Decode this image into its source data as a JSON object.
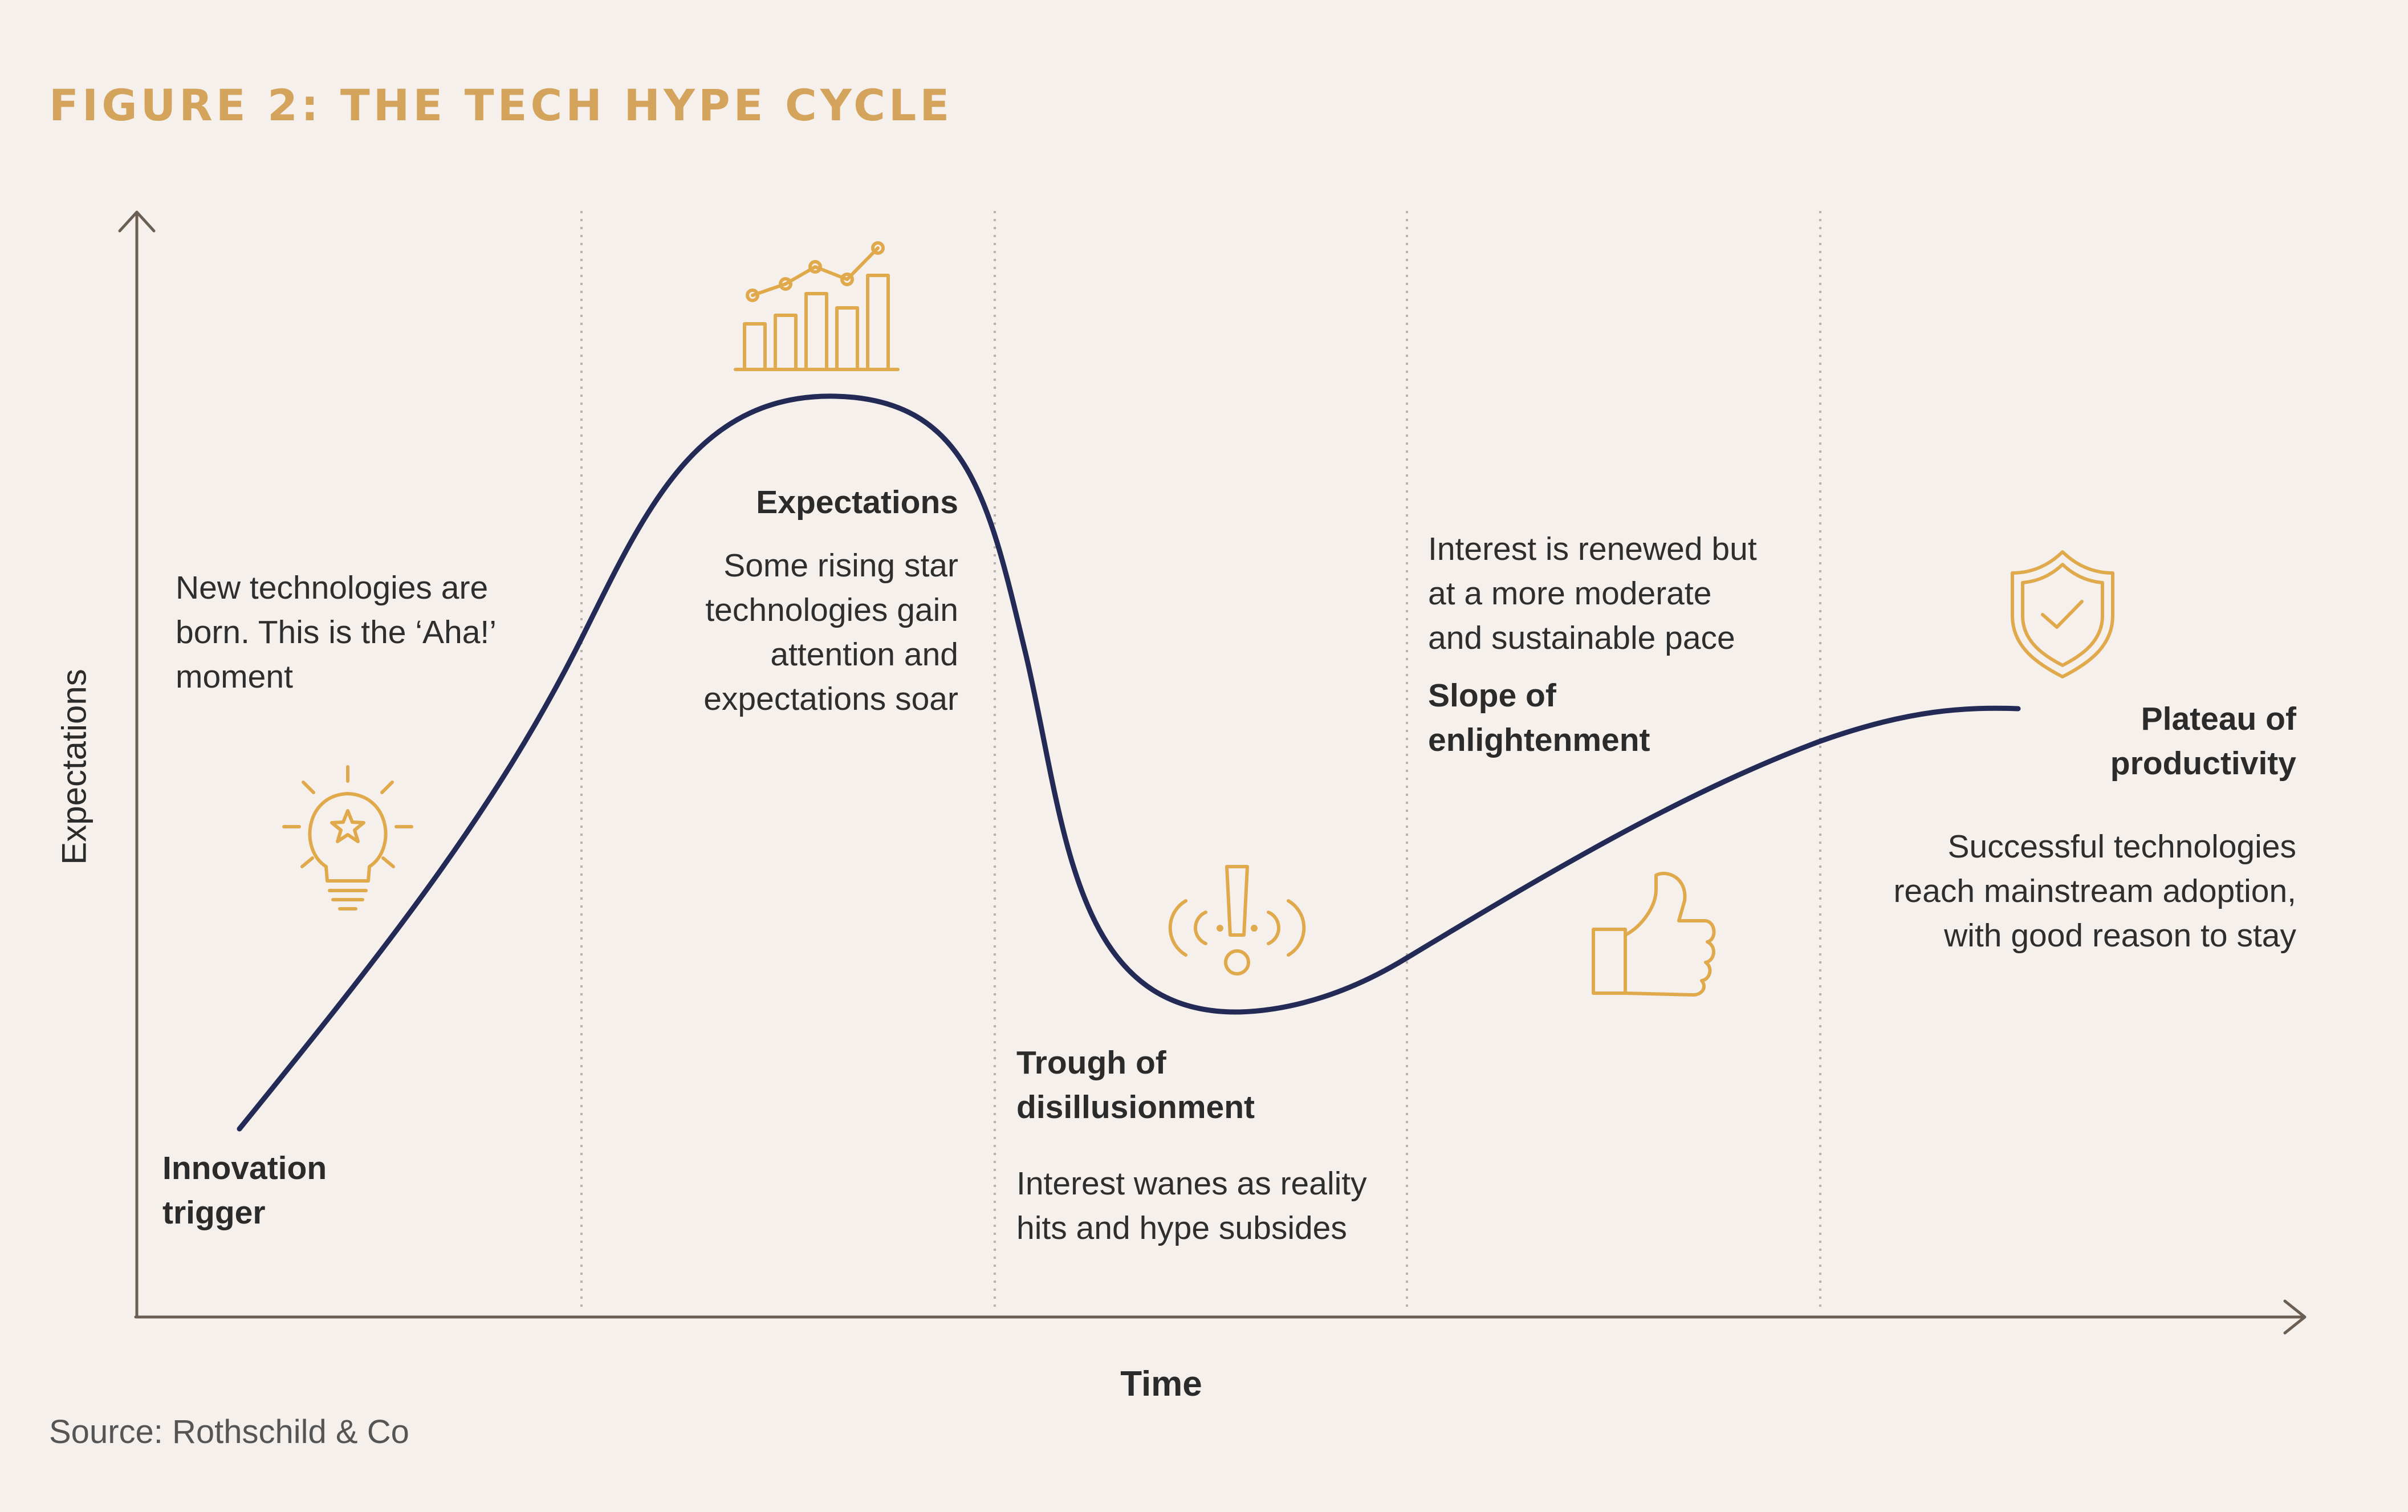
{
  "title": "FIGURE 2: THE TECH HYPE CYCLE",
  "axes": {
    "y_label": "Expectations",
    "x_label": "Time"
  },
  "source": "Source: Rothschild & Co",
  "phases": [
    {
      "heading": [
        "Innovation",
        "trigger"
      ],
      "description": [
        "New technologies are",
        "born. This is the ‘Aha!’",
        "moment"
      ],
      "icon": "lightbulb-star-icon"
    },
    {
      "heading": [
        "Expectations"
      ],
      "description": [
        "Some rising star",
        "technologies gain",
        "attention and",
        "expectations soar"
      ],
      "icon": "rising-bar-chart-icon"
    },
    {
      "heading": [
        "Trough of",
        "disillusionment"
      ],
      "description": [
        "Interest wanes as reality",
        "hits and hype subsides"
      ],
      "icon": "exclamation-alert-icon"
    },
    {
      "heading": [
        "Slope of",
        "enlightenment"
      ],
      "description": [
        "Interest is renewed but",
        "at a more moderate",
        "and sustainable pace"
      ],
      "icon": "thumbs-up-icon"
    },
    {
      "heading": [
        "Plateau of",
        "productivity"
      ],
      "description": [
        "Successful technologies",
        "reach mainstream adoption,",
        "with good reason to stay"
      ],
      "icon": "shield-check-icon"
    }
  ],
  "colors": {
    "title": "#d4a45c",
    "icons": "#e0aa4c",
    "curve": "#232a55",
    "axis": "#6b5e52",
    "dividers": "#b9b3ad",
    "background": "#f5f0ec"
  }
}
